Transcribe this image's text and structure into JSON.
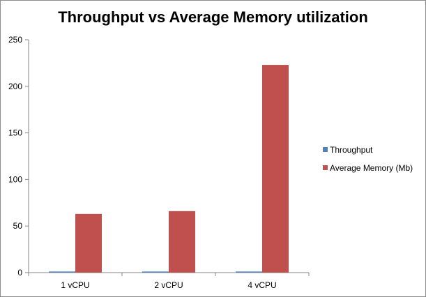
{
  "chart_data": {
    "type": "bar",
    "title": "Throughput vs Average Memory utilization",
    "xlabel": "",
    "ylabel": "",
    "categories": [
      "1 vCPU",
      "2 vCPU",
      "4 vCPU"
    ],
    "series": [
      {
        "name": "Throughput",
        "color": "#4f81bd",
        "values": [
          1.2,
          1.2,
          1.2
        ]
      },
      {
        "name": "Average Memory (Mb)",
        "color": "#c0504d",
        "values": [
          63,
          66,
          223
        ]
      }
    ],
    "ylim": [
      0,
      250
    ],
    "yticks": [
      0,
      50,
      100,
      150,
      200,
      250
    ],
    "grid": false,
    "legend": "right"
  }
}
